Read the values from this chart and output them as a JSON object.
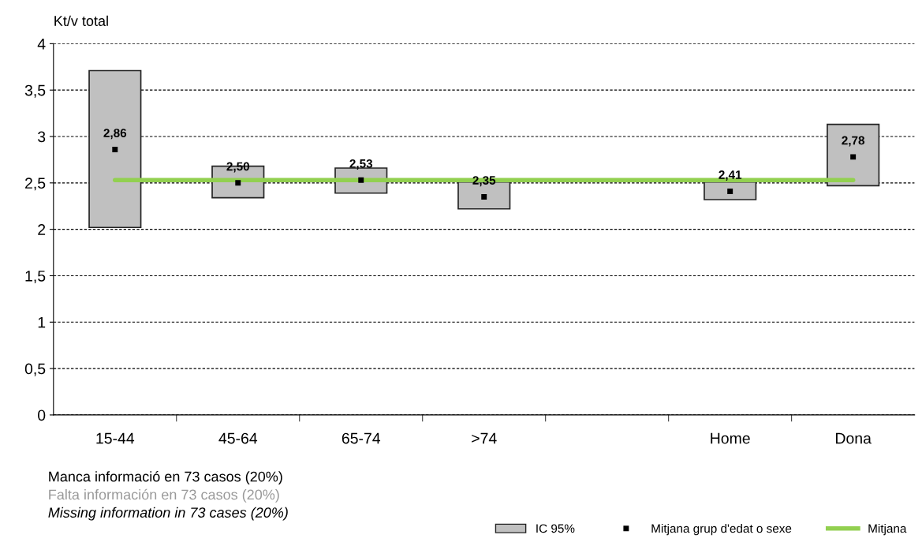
{
  "chart_data": {
    "type": "bar",
    "ylabel": "Kt/v total",
    "categories": [
      "15-44",
      "45-64",
      "65-74",
      ">74",
      null,
      "Home",
      "Dona"
    ],
    "series": [
      {
        "name": "IC 95%",
        "color": "#c0c0c0",
        "base": [
          2.02,
          2.34,
          2.39,
          2.22,
          null,
          2.32,
          2.47
        ],
        "values": [
          1.69,
          0.34,
          0.27,
          0.29,
          null,
          0.19,
          0.66
        ]
      },
      {
        "name": "Mitjana grup d'edat o sexe",
        "type": "scatter",
        "color": "#000000",
        "marker": "square",
        "values": [
          2.86,
          2.5,
          2.53,
          2.35,
          null,
          2.41,
          2.78
        ],
        "value_labels": [
          "2,86",
          "2,50",
          "2,53",
          "2,35",
          null,
          "2,41",
          "2,78"
        ]
      },
      {
        "name": "Mitjana",
        "type": "line",
        "color": "#92d050",
        "values": [
          2.53,
          2.53,
          2.53,
          2.53,
          2.53,
          2.53,
          2.53
        ]
      }
    ],
    "ylim": [
      0,
      4
    ],
    "yticks": [
      0,
      {
        "value": 0.5,
        "label": "0,5"
      },
      1,
      {
        "value": 1.5,
        "label": "1,5"
      },
      2,
      {
        "value": 2.5,
        "label": "2,5"
      },
      3,
      {
        "value": 3.5,
        "label": "3,5"
      },
      4
    ],
    "grid": "y",
    "legend": "bottom right",
    "annotations": [
      "Manca informació en 73 casos (20%)",
      "Falta información en 73 casos (20%)",
      "Missing information in 73 cases (20%)"
    ]
  }
}
